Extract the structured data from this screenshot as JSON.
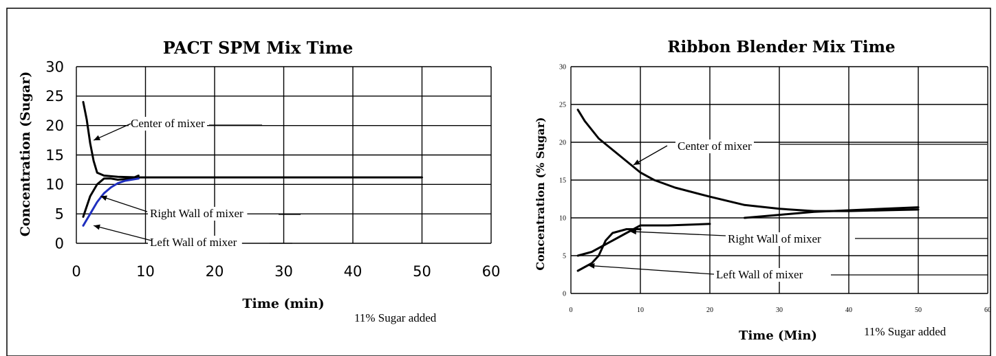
{
  "chart_data": [
    {
      "type": "line",
      "title": "PACT SPM Mix Time",
      "xlabel": "Time (min)",
      "ylabel": "Concentration (Sugar)",
      "xlim": [
        0,
        60
      ],
      "ylim": [
        0,
        30
      ],
      "x_ticks": [
        "0",
        "10",
        "20",
        "30",
        "40",
        "50",
        "60"
      ],
      "y_ticks": [
        "0",
        "5",
        "10",
        "15",
        "20",
        "25",
        "30"
      ],
      "grid": true,
      "note": "11% Sugar added",
      "series": [
        {
          "color": "#000000",
          "points": [
            [
              1,
              24
            ],
            [
              1.5,
              21
            ],
            [
              2,
              17
            ],
            [
              2.5,
              14
            ],
            [
              3,
              12
            ],
            [
              4,
              11.5
            ],
            [
              6,
              11.3
            ],
            [
              9,
              11.2
            ],
            [
              20,
              11.2
            ],
            [
              50,
              11.2
            ]
          ]
        },
        {
          "color": "#000000",
          "points": [
            [
              1,
              4.5
            ],
            [
              2,
              8
            ],
            [
              3,
              10
            ],
            [
              4,
              11
            ],
            [
              5,
              11
            ],
            [
              6,
              10.8
            ],
            [
              8,
              11
            ],
            [
              9,
              11.5
            ]
          ]
        },
        {
          "color": "#1f2fbf",
          "points": [
            [
              1,
              3
            ],
            [
              2,
              5
            ],
            [
              3,
              7
            ],
            [
              4,
              8.5
            ],
            [
              5,
              9.5
            ],
            [
              6,
              10.2
            ],
            [
              7,
              10.6
            ],
            [
              9,
              11
            ]
          ]
        }
      ],
      "annotations": [
        {
          "text": "Center of mixer",
          "target": [
            2.5,
            17.5
          ]
        },
        {
          "text": "Right Wall of mixer",
          "target": [
            3.5,
            8
          ]
        },
        {
          "text": "Left Wall of mixer",
          "target": [
            2.5,
            3
          ]
        }
      ]
    },
    {
      "type": "line",
      "title": "Ribbon Blender Mix Time",
      "xlabel": "Time (Min)",
      "ylabel": "Concentration (% Sugar)",
      "xlim": [
        0,
        60
      ],
      "ylim": [
        0,
        30
      ],
      "x_ticks": [
        "0",
        "10",
        "20",
        "30",
        "40",
        "50",
        "60"
      ],
      "y_ticks": [
        "0",
        "5",
        "10",
        "15",
        "20",
        "25",
        "30"
      ],
      "grid": true,
      "note": "11% Sugar added",
      "series": [
        {
          "color": "#000000",
          "points": [
            [
              1,
              24.3
            ],
            [
              2,
              22.8
            ],
            [
              4,
              20.5
            ],
            [
              6,
              19
            ],
            [
              8,
              17.5
            ],
            [
              10,
              16
            ],
            [
              12,
              15
            ],
            [
              15,
              14
            ],
            [
              20,
              12.8
            ],
            [
              25,
              11.7
            ],
            [
              30,
              11.2
            ],
            [
              35,
              10.9
            ],
            [
              40,
              10.9
            ],
            [
              45,
              11
            ],
            [
              50,
              11.1
            ]
          ]
        },
        {
          "color": "#000000",
          "points": [
            [
              1,
              5
            ],
            [
              3,
              5.5
            ],
            [
              5,
              6.5
            ],
            [
              7,
              7.5
            ],
            [
              9,
              8.5
            ],
            [
              10,
              9
            ],
            [
              14,
              9
            ],
            [
              20,
              9.2
            ]
          ]
        },
        {
          "color": "#000000",
          "points": [
            [
              1,
              3
            ],
            [
              3,
              4
            ],
            [
              4,
              5
            ],
            [
              5,
              7
            ],
            [
              6,
              8
            ],
            [
              8,
              8.5
            ],
            [
              10,
              8.5
            ]
          ]
        },
        {
          "color": "#000000",
          "points": [
            [
              25,
              10
            ],
            [
              30,
              10.4
            ],
            [
              35,
              10.8
            ],
            [
              40,
              11
            ],
            [
              45,
              11.2
            ],
            [
              50,
              11.4
            ]
          ]
        }
      ],
      "annotations": [
        {
          "text": "Center of mixer",
          "target": [
            9,
            17
          ]
        },
        {
          "text": "Right Wall of mixer",
          "target": [
            8.5,
            8.2
          ]
        },
        {
          "text": "Left Wall of mixer",
          "target": [
            2.5,
            3.7
          ]
        }
      ]
    }
  ]
}
